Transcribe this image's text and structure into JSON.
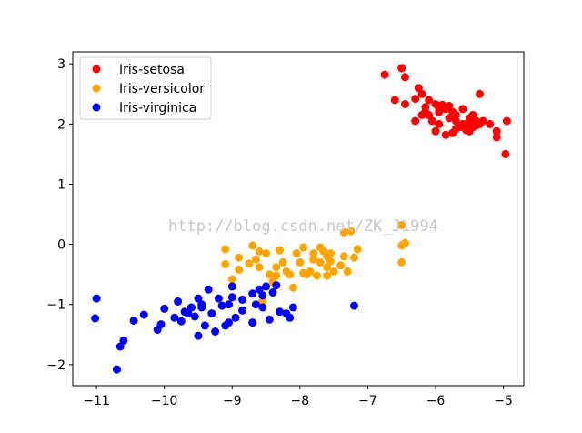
{
  "chart_data": {
    "type": "scatter",
    "title": "",
    "xlabel": "",
    "ylabel": "",
    "xlim": [
      -11.35,
      -4.7
    ],
    "ylim": [
      -2.35,
      3.2
    ],
    "xticks": [
      -11,
      -10,
      -9,
      -8,
      -7,
      -6,
      -5
    ],
    "yticks": [
      -2,
      -1,
      0,
      1,
      2,
      3
    ],
    "xtick_labels": [
      "−11",
      "−10",
      "−9",
      "−8",
      "−7",
      "−6",
      "−5"
    ],
    "ytick_labels": [
      "−2",
      "−1",
      "0",
      "1",
      "2",
      "3"
    ],
    "grid": false,
    "legend_placement": "top-left",
    "series": [
      {
        "name": "Iris-setosa",
        "color": "#ff0000",
        "points": [
          [
            -6.5,
            2.93
          ],
          [
            -6.45,
            2.78
          ],
          [
            -6.75,
            2.82
          ],
          [
            -6.6,
            2.4
          ],
          [
            -6.45,
            2.33
          ],
          [
            -6.25,
            2.6
          ],
          [
            -6.3,
            2.42
          ],
          [
            -6.2,
            2.5
          ],
          [
            -6.15,
            2.28
          ],
          [
            -6.1,
            2.4
          ],
          [
            -6.0,
            2.33
          ],
          [
            -5.95,
            2.2
          ],
          [
            -5.9,
            2.32
          ],
          [
            -5.8,
            2.3
          ],
          [
            -5.75,
            2.2
          ],
          [
            -5.7,
            2.15
          ],
          [
            -5.85,
            2.25
          ],
          [
            -5.6,
            2.25
          ],
          [
            -5.5,
            2.1
          ],
          [
            -5.45,
            2.15
          ],
          [
            -5.4,
            2.05
          ],
          [
            -5.35,
            2.5
          ],
          [
            -5.3,
            2.05
          ],
          [
            -5.2,
            2.0
          ],
          [
            -5.1,
            1.88
          ],
          [
            -5.1,
            1.78
          ],
          [
            -4.95,
            2.05
          ],
          [
            -4.97,
            1.5
          ],
          [
            -6.3,
            2.05
          ],
          [
            -6.2,
            2.15
          ],
          [
            -6.15,
            2.2
          ],
          [
            -6.05,
            2.05
          ],
          [
            -6.0,
            1.88
          ],
          [
            -5.95,
            2.0
          ],
          [
            -5.85,
            1.82
          ],
          [
            -5.75,
            1.85
          ],
          [
            -5.7,
            2.05
          ],
          [
            -5.65,
            1.95
          ],
          [
            -5.55,
            1.9
          ],
          [
            -5.5,
            1.88
          ],
          [
            -5.45,
            1.95
          ],
          [
            -5.4,
            1.98
          ],
          [
            -5.35,
            2.0
          ],
          [
            -5.6,
            2.0
          ],
          [
            -5.8,
            2.1
          ],
          [
            -6.1,
            2.15
          ],
          [
            -5.95,
            2.25
          ],
          [
            -5.55,
            2.0
          ],
          [
            -5.45,
            2.05
          ],
          [
            -5.7,
            1.92
          ]
        ]
      },
      {
        "name": "Iris-versicolor",
        "color": "#ffa500",
        "points": [
          [
            -9.1,
            -0.08
          ],
          [
            -9.1,
            -0.33
          ],
          [
            -9.0,
            -0.58
          ],
          [
            -8.9,
            -0.22
          ],
          [
            -8.9,
            -0.42
          ],
          [
            -8.75,
            -0.32
          ],
          [
            -8.7,
            -0.02
          ],
          [
            -8.65,
            -0.25
          ],
          [
            -8.6,
            -0.12
          ],
          [
            -8.6,
            -0.38
          ],
          [
            -8.5,
            -0.15
          ],
          [
            -8.45,
            -0.5
          ],
          [
            -8.4,
            -0.62
          ],
          [
            -8.35,
            -0.38
          ],
          [
            -8.35,
            -0.52
          ],
          [
            -8.3,
            -0.1
          ],
          [
            -8.25,
            -0.3
          ],
          [
            -8.2,
            -0.45
          ],
          [
            -8.15,
            -0.5
          ],
          [
            -8.1,
            -0.72
          ],
          [
            -8.05,
            -0.15
          ],
          [
            -8.0,
            -0.3
          ],
          [
            -7.95,
            -0.05
          ],
          [
            -7.9,
            -0.5
          ],
          [
            -7.85,
            -0.45
          ],
          [
            -7.8,
            -0.15
          ],
          [
            -7.8,
            -0.25
          ],
          [
            -7.75,
            -0.52
          ],
          [
            -7.7,
            -0.3
          ],
          [
            -7.65,
            -0.12
          ],
          [
            -7.6,
            -0.2
          ],
          [
            -7.6,
            -0.38
          ],
          [
            -7.55,
            -0.28
          ],
          [
            -7.5,
            -0.45
          ],
          [
            -7.4,
            -0.35
          ],
          [
            -7.35,
            0.2
          ],
          [
            -7.3,
            -0.45
          ],
          [
            -7.25,
            0.22
          ],
          [
            -7.2,
            -0.22
          ],
          [
            -7.15,
            -0.08
          ],
          [
            -6.5,
            0.32
          ],
          [
            -6.5,
            -0.02
          ],
          [
            -6.45,
            0.02
          ],
          [
            -6.5,
            -0.3
          ],
          [
            -7.35,
            -0.2
          ],
          [
            -7.6,
            -0.52
          ],
          [
            -7.95,
            -0.48
          ],
          [
            -8.55,
            -0.95
          ],
          [
            -7.7,
            -0.05
          ],
          [
            -7.55,
            -0.15
          ]
        ]
      },
      {
        "name": "Iris-virginica",
        "color": "#0000ff",
        "points": [
          [
            -11.0,
            -0.9
          ],
          [
            -11.02,
            -1.23
          ],
          [
            -10.7,
            -2.08
          ],
          [
            -10.65,
            -1.7
          ],
          [
            -10.6,
            -1.6
          ],
          [
            -10.45,
            -1.27
          ],
          [
            -10.3,
            -1.17
          ],
          [
            -10.1,
            -1.42
          ],
          [
            -10.05,
            -1.33
          ],
          [
            -10.0,
            -1.07
          ],
          [
            -9.85,
            -1.22
          ],
          [
            -9.8,
            -0.95
          ],
          [
            -9.75,
            -1.28
          ],
          [
            -9.7,
            -1.12
          ],
          [
            -9.6,
            -1.05
          ],
          [
            -9.55,
            -1.2
          ],
          [
            -9.5,
            -0.9
          ],
          [
            -9.45,
            -1.05
          ],
          [
            -9.4,
            -1.35
          ],
          [
            -9.35,
            -0.75
          ],
          [
            -9.3,
            -1.15
          ],
          [
            -9.25,
            -1.45
          ],
          [
            -9.2,
            -0.9
          ],
          [
            -9.15,
            -1.02
          ],
          [
            -9.1,
            -1.35
          ],
          [
            -9.05,
            -1.0
          ],
          [
            -9.0,
            -0.7
          ],
          [
            -9.0,
            -0.88
          ],
          [
            -8.95,
            -1.22
          ],
          [
            -8.85,
            -1.1
          ],
          [
            -8.7,
            -1.3
          ],
          [
            -8.7,
            -0.82
          ],
          [
            -8.6,
            -0.75
          ],
          [
            -8.55,
            -0.85
          ],
          [
            -8.55,
            -1.05
          ],
          [
            -8.5,
            -0.7
          ],
          [
            -8.45,
            -1.25
          ],
          [
            -8.4,
            -0.8
          ],
          [
            -8.35,
            -0.68
          ],
          [
            -8.3,
            -1.12
          ],
          [
            -8.2,
            -1.15
          ],
          [
            -8.15,
            -1.22
          ],
          [
            -8.1,
            -1.05
          ],
          [
            -7.2,
            -1.02
          ],
          [
            -9.5,
            -1.52
          ],
          [
            -9.05,
            -1.3
          ],
          [
            -8.85,
            -0.92
          ],
          [
            -9.65,
            -1.15
          ],
          [
            -8.65,
            -1.0
          ],
          [
            -9.45,
            -1.0
          ]
        ]
      }
    ]
  },
  "watermark": {
    "text": "http://blog.csdn.net/ZK_J1994"
  }
}
